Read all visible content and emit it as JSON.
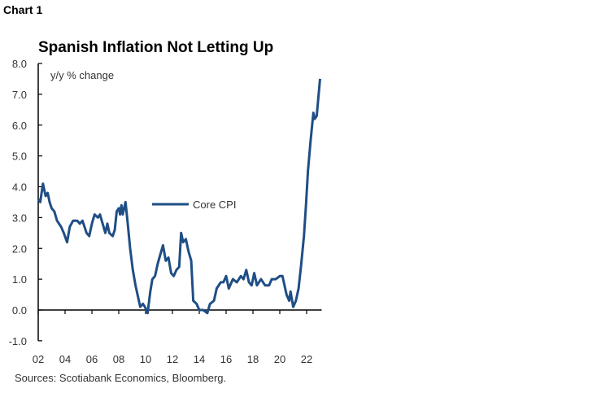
{
  "chart_label": "Chart 1",
  "source": "Sources: Scotiabank Economics, Bloomberg.",
  "chart_data": {
    "type": "line",
    "title": "Spanish Inflation Not Letting Up",
    "ylabel": "y/y % change",
    "xlabel": "",
    "ylim": [
      -1,
      8
    ],
    "xlim": [
      2002,
      2023
    ],
    "yticks": [
      -1,
      0,
      1,
      2,
      3,
      4,
      5,
      6,
      7,
      8
    ],
    "ytick_labels": [
      "-1.0",
      "0.0",
      "1.0",
      "2.0",
      "3.0",
      "4.0",
      "5.0",
      "6.0",
      "7.0",
      "8.0"
    ],
    "xticks": [
      2002,
      2004,
      2006,
      2008,
      2010,
      2012,
      2014,
      2016,
      2018,
      2020,
      2022
    ],
    "xtick_labels": [
      "02",
      "04",
      "06",
      "08",
      "10",
      "12",
      "14",
      "16",
      "18",
      "20",
      "22"
    ],
    "grid": false,
    "legend_position": "center-left",
    "color": "#1f4e85",
    "series": [
      {
        "name": "Core CPI",
        "x": [
          2002.0,
          2002.15,
          2002.35,
          2002.55,
          2002.7,
          2002.85,
          2003.0,
          2003.2,
          2003.4,
          2003.7,
          2003.9,
          2004.15,
          2004.35,
          2004.6,
          2004.9,
          2005.1,
          2005.3,
          2005.6,
          2005.8,
          2006.0,
          2006.2,
          2006.45,
          2006.6,
          2006.8,
          2007.0,
          2007.15,
          2007.3,
          2007.55,
          2007.7,
          2007.85,
          2008.0,
          2008.1,
          2008.2,
          2008.3,
          2008.5,
          2008.65,
          2008.85,
          2009.05,
          2009.25,
          2009.6,
          2009.8,
          2009.95,
          2010.15,
          2010.35,
          2010.5,
          2010.7,
          2010.9,
          2011.1,
          2011.3,
          2011.5,
          2011.7,
          2011.9,
          2012.1,
          2012.3,
          2012.5,
          2012.65,
          2012.8,
          2013.0,
          2013.2,
          2013.4,
          2013.55,
          2013.8,
          2014.0,
          2014.3,
          2014.6,
          2014.8,
          2015.1,
          2015.3,
          2015.6,
          2015.8,
          2016.0,
          2016.2,
          2016.5,
          2016.8,
          2017.1,
          2017.3,
          2017.5,
          2017.7,
          2017.9,
          2018.1,
          2018.3,
          2018.6,
          2018.9,
          2019.2,
          2019.4,
          2019.7,
          2020.0,
          2020.2,
          2020.5,
          2020.7,
          2020.8,
          2021.0,
          2021.2,
          2021.4,
          2021.6,
          2021.8,
          2021.95,
          2022.1,
          2022.3,
          2022.5,
          2022.6,
          2022.75,
          2023.0
        ],
        "values": [
          3.6,
          3.5,
          4.1,
          3.7,
          3.8,
          3.5,
          3.3,
          3.2,
          2.9,
          2.7,
          2.5,
          2.2,
          2.7,
          2.9,
          2.9,
          2.8,
          2.9,
          2.5,
          2.4,
          2.8,
          3.1,
          3.0,
          3.1,
          2.8,
          2.5,
          2.8,
          2.5,
          2.4,
          2.6,
          3.2,
          3.3,
          3.1,
          3.4,
          3.1,
          3.5,
          2.9,
          2.0,
          1.3,
          0.8,
          0.1,
          0.2,
          0.1,
          -0.1,
          0.6,
          1.0,
          1.1,
          1.5,
          1.8,
          2.1,
          1.6,
          1.7,
          1.2,
          1.1,
          1.3,
          1.4,
          2.5,
          2.2,
          2.3,
          1.9,
          1.6,
          0.3,
          0.2,
          0.0,
          0.0,
          -0.1,
          0.2,
          0.3,
          0.7,
          0.9,
          0.9,
          1.1,
          0.7,
          1.0,
          0.9,
          1.1,
          1.0,
          1.3,
          0.9,
          0.8,
          1.2,
          0.8,
          1.0,
          0.8,
          0.8,
          1.0,
          1.0,
          1.1,
          1.1,
          0.5,
          0.3,
          0.6,
          0.1,
          0.3,
          0.7,
          1.5,
          2.4,
          3.4,
          4.5,
          5.5,
          6.4,
          6.2,
          6.3,
          7.5
        ]
      }
    ]
  }
}
